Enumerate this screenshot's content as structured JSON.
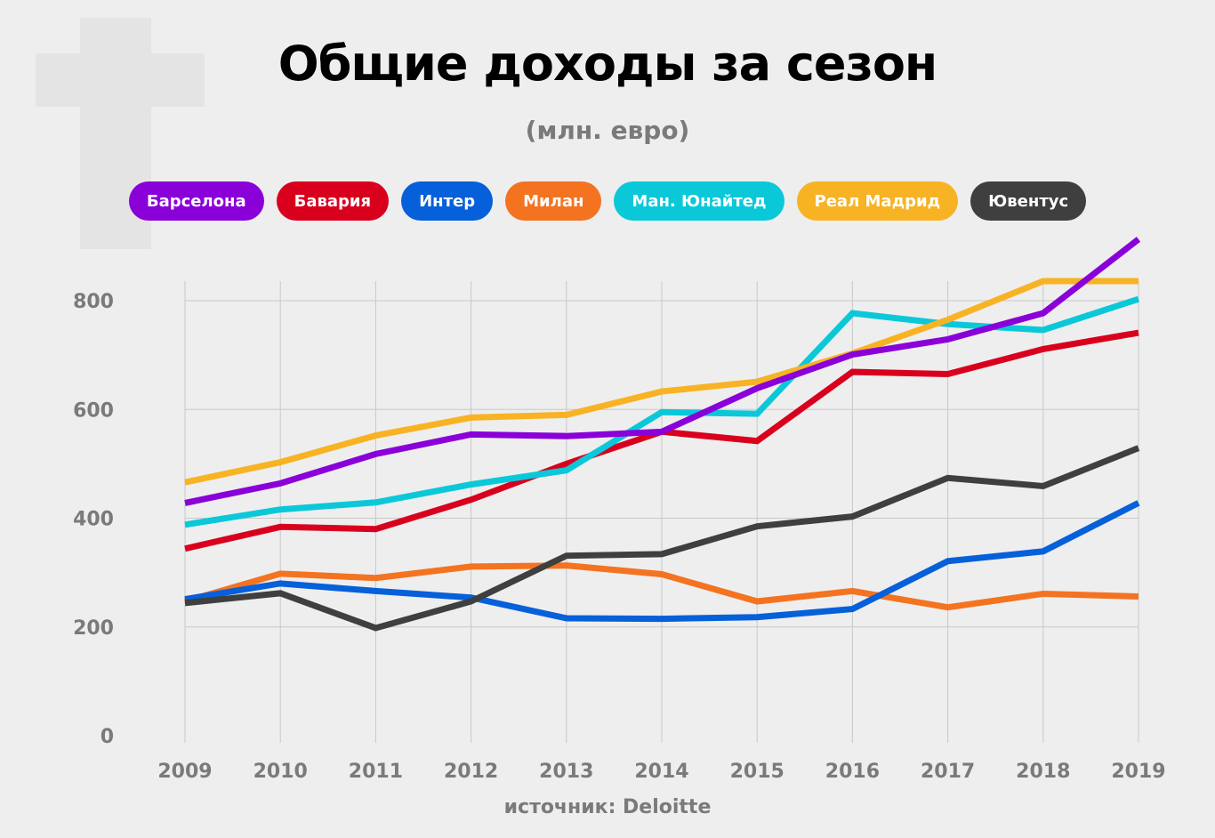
{
  "chart_data": {
    "type": "line",
    "title": "Общие доходы за сезон",
    "subtitle": "(млн. евро)",
    "source": "источник: Deloitte",
    "xlabel": "",
    "ylabel": "",
    "ylim": [
      0,
      800
    ],
    "yticks": [
      0,
      200,
      400,
      600,
      800
    ],
    "grid": true,
    "legend_position": "top",
    "x": [
      "2009",
      "2010",
      "2011",
      "2012",
      "2013",
      "2014",
      "2015",
      "2016",
      "2017",
      "2018",
      "2019"
    ],
    "series": [
      {
        "name": "Барселона",
        "color": "#8a00d9",
        "values": [
          428,
          464,
          518,
          554,
          551,
          559,
          639,
          701,
          729,
          777,
          913
        ]
      },
      {
        "name": "Бавария",
        "color": "#d9001e",
        "values": [
          344,
          384,
          380,
          434,
          500,
          559,
          542,
          669,
          665,
          711,
          741
        ]
      },
      {
        "name": "Интер",
        "color": "#0560d9",
        "values": [
          251,
          280,
          266,
          254,
          216,
          215,
          218,
          233,
          321,
          339,
          428
        ]
      },
      {
        "name": "Милан",
        "color": "#f47321",
        "values": [
          247,
          298,
          290,
          311,
          313,
          297,
          247,
          266,
          236,
          261,
          256
        ]
      },
      {
        "name": "Ман. Юнайтед",
        "color": "#0bc8d9",
        "values": [
          388,
          416,
          429,
          462,
          488,
          595,
          592,
          777,
          757,
          746,
          803
        ]
      },
      {
        "name": "Реал Мадрид",
        "color": "#f7b323",
        "values": [
          466,
          503,
          552,
          585,
          590,
          633,
          651,
          703,
          765,
          836,
          836
        ]
      },
      {
        "name": "Ювентус",
        "color": "#3f3f3f",
        "values": [
          244,
          262,
          198,
          247,
          331,
          334,
          385,
          403,
          474,
          459,
          529
        ]
      }
    ]
  }
}
